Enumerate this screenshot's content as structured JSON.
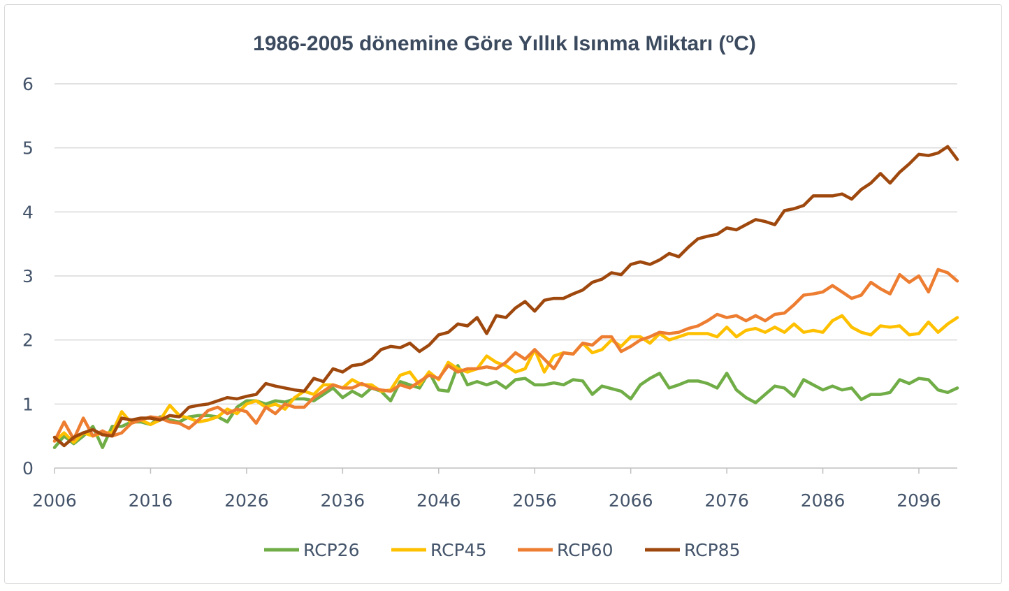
{
  "chart_data": {
    "type": "line",
    "title_main": "1986-2005 dönemine Göre Yıllık Isınma Miktarı (",
    "title_sup": "o",
    "title_tail": "C)",
    "xlabel": "",
    "ylabel": "",
    "xlim": [
      2006,
      2100
    ],
    "ylim": [
      0,
      6
    ],
    "yticks": [
      "0",
      "1",
      "2",
      "3",
      "4",
      "5",
      "6"
    ],
    "xticks": [
      "2006",
      "2016",
      "2026",
      "2036",
      "2046",
      "2056",
      "2066",
      "2076",
      "2086",
      "2096"
    ],
    "grid": true,
    "legend_position": "bottom",
    "x_start": 2006,
    "series": [
      {
        "name": "RCP26",
        "color": "#70ad47",
        "values": [
          0.32,
          0.5,
          0.38,
          0.5,
          0.65,
          0.32,
          0.65,
          0.65,
          0.72,
          0.72,
          0.68,
          0.8,
          0.75,
          0.72,
          0.8,
          0.82,
          0.82,
          0.8,
          0.72,
          0.95,
          1.05,
          1.05,
          1.0,
          1.05,
          1.03,
          1.08,
          1.08,
          1.05,
          1.15,
          1.25,
          1.1,
          1.2,
          1.12,
          1.25,
          1.2,
          1.05,
          1.35,
          1.3,
          1.25,
          1.5,
          1.22,
          1.2,
          1.6,
          1.3,
          1.35,
          1.3,
          1.35,
          1.25,
          1.38,
          1.4,
          1.3,
          1.3,
          1.33,
          1.3,
          1.38,
          1.36,
          1.15,
          1.28,
          1.24,
          1.2,
          1.08,
          1.3,
          1.4,
          1.48,
          1.25,
          1.3,
          1.36,
          1.36,
          1.32,
          1.25,
          1.48,
          1.22,
          1.1,
          1.02,
          1.15,
          1.28,
          1.25,
          1.12,
          1.38,
          1.3,
          1.22,
          1.28,
          1.22,
          1.25,
          1.07,
          1.15,
          1.15,
          1.18,
          1.38,
          1.32,
          1.4,
          1.38,
          1.22,
          1.18,
          1.25
        ]
      },
      {
        "name": "RCP45",
        "color": "#ffc000",
        "values": [
          0.42,
          0.55,
          0.4,
          0.55,
          0.5,
          0.55,
          0.55,
          0.88,
          0.7,
          0.75,
          0.68,
          0.75,
          0.98,
          0.82,
          0.78,
          0.72,
          0.75,
          0.8,
          0.92,
          0.85,
          1.0,
          1.05,
          0.95,
          1.0,
          0.92,
          1.1,
          1.2,
          1.15,
          1.3,
          1.3,
          1.25,
          1.38,
          1.3,
          1.3,
          1.2,
          1.22,
          1.45,
          1.5,
          1.3,
          1.5,
          1.38,
          1.65,
          1.55,
          1.5,
          1.55,
          1.75,
          1.65,
          1.6,
          1.5,
          1.55,
          1.85,
          1.5,
          1.75,
          1.8,
          1.78,
          1.95,
          1.8,
          1.85,
          2.0,
          1.9,
          2.05,
          2.05,
          1.95,
          2.1,
          2.0,
          2.05,
          2.1,
          2.1,
          2.1,
          2.05,
          2.2,
          2.05,
          2.15,
          2.18,
          2.12,
          2.2,
          2.12,
          2.25,
          2.12,
          2.15,
          2.12,
          2.3,
          2.38,
          2.2,
          2.12,
          2.08,
          2.22,
          2.2,
          2.22,
          2.08,
          2.1,
          2.28,
          2.12,
          2.25,
          2.35
        ]
      },
      {
        "name": "RCP60",
        "color": "#ed7d31",
        "values": [
          0.42,
          0.72,
          0.45,
          0.78,
          0.5,
          0.58,
          0.5,
          0.55,
          0.7,
          0.75,
          0.8,
          0.78,
          0.72,
          0.7,
          0.62,
          0.75,
          0.9,
          0.95,
          0.85,
          0.92,
          0.88,
          0.7,
          0.95,
          0.85,
          1.0,
          0.95,
          0.95,
          1.1,
          1.2,
          1.3,
          1.25,
          1.25,
          1.32,
          1.25,
          1.22,
          1.2,
          1.3,
          1.25,
          1.35,
          1.45,
          1.4,
          1.6,
          1.5,
          1.55,
          1.55,
          1.58,
          1.55,
          1.65,
          1.8,
          1.7,
          1.85,
          1.7,
          1.55,
          1.8,
          1.78,
          1.95,
          1.92,
          2.05,
          2.05,
          1.82,
          1.9,
          2.0,
          2.05,
          2.12,
          2.1,
          2.12,
          2.18,
          2.22,
          2.3,
          2.4,
          2.35,
          2.38,
          2.3,
          2.38,
          2.3,
          2.4,
          2.42,
          2.55,
          2.7,
          2.72,
          2.75,
          2.85,
          2.75,
          2.65,
          2.7,
          2.9,
          2.8,
          2.72,
          3.02,
          2.9,
          3.0,
          2.75,
          3.1,
          3.05,
          2.92
        ]
      },
      {
        "name": "RCP85",
        "color": "#9e480e",
        "values": [
          0.48,
          0.35,
          0.48,
          0.55,
          0.6,
          0.52,
          0.5,
          0.78,
          0.75,
          0.78,
          0.78,
          0.75,
          0.82,
          0.8,
          0.95,
          0.98,
          1.0,
          1.05,
          1.1,
          1.08,
          1.12,
          1.15,
          1.32,
          1.28,
          1.25,
          1.22,
          1.2,
          1.4,
          1.35,
          1.55,
          1.5,
          1.6,
          1.62,
          1.7,
          1.85,
          1.9,
          1.88,
          1.95,
          1.82,
          1.92,
          2.08,
          2.12,
          2.25,
          2.22,
          2.35,
          2.1,
          2.38,
          2.35,
          2.5,
          2.6,
          2.45,
          2.62,
          2.65,
          2.65,
          2.72,
          2.78,
          2.9,
          2.95,
          3.05,
          3.02,
          3.18,
          3.22,
          3.18,
          3.25,
          3.35,
          3.3,
          3.45,
          3.58,
          3.62,
          3.65,
          3.75,
          3.72,
          3.8,
          3.88,
          3.85,
          3.8,
          4.02,
          4.05,
          4.1,
          4.25,
          4.25,
          4.25,
          4.28,
          4.2,
          4.35,
          4.45,
          4.6,
          4.45,
          4.62,
          4.75,
          4.9,
          4.88,
          4.92,
          5.02,
          4.82
        ]
      }
    ]
  }
}
